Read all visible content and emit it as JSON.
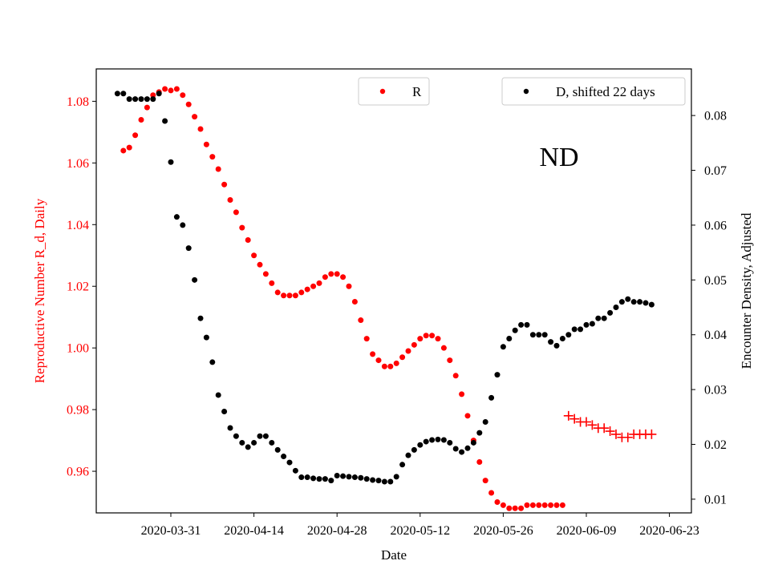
{
  "chart_data": {
    "type": "scatter",
    "annotation": "ND",
    "xlabel": "Date",
    "ylabel_left": "Reproductive Number R_d, Daily",
    "ylabel_right": "Encounter Density, Adjusted",
    "x_ticks": [
      "2020-03-31",
      "2020-04-14",
      "2020-04-28",
      "2020-05-12",
      "2020-05-26",
      "2020-06-09",
      "2020-06-23"
    ],
    "left_ticks": [
      "0.96",
      "0.98",
      "1.00",
      "1.02",
      "1.04",
      "1.06",
      "1.08"
    ],
    "right_ticks": [
      "0.01",
      "0.02",
      "0.03",
      "0.04",
      "0.05",
      "0.06",
      "0.07",
      "0.08"
    ],
    "ylim_left": [
      0.9465,
      1.0905
    ],
    "ylim_right": [
      0.0075,
      0.0885
    ],
    "legend": {
      "r_label": "R",
      "d_label": "D, shifted 22 days"
    },
    "colors": {
      "r": "#ff0000",
      "d": "#000000",
      "left_axis": "#ff0000",
      "right_axis": "#000000"
    },
    "r_series": {
      "name": "R",
      "x": [
        "2020-03-23",
        "2020-03-24",
        "2020-03-25",
        "2020-03-26",
        "2020-03-27",
        "2020-03-28",
        "2020-03-29",
        "2020-03-30",
        "2020-03-31",
        "2020-04-01",
        "2020-04-02",
        "2020-04-03",
        "2020-04-04",
        "2020-04-05",
        "2020-04-06",
        "2020-04-07",
        "2020-04-08",
        "2020-04-09",
        "2020-04-10",
        "2020-04-11",
        "2020-04-12",
        "2020-04-13",
        "2020-04-14",
        "2020-04-15",
        "2020-04-16",
        "2020-04-17",
        "2020-04-18",
        "2020-04-19",
        "2020-04-20",
        "2020-04-21",
        "2020-04-22",
        "2020-04-23",
        "2020-04-24",
        "2020-04-25",
        "2020-04-26",
        "2020-04-27",
        "2020-04-28",
        "2020-04-29",
        "2020-04-30",
        "2020-05-01",
        "2020-05-02",
        "2020-05-03",
        "2020-05-04",
        "2020-05-05",
        "2020-05-06",
        "2020-05-07",
        "2020-05-08",
        "2020-05-09",
        "2020-05-10",
        "2020-05-11",
        "2020-05-12",
        "2020-05-13",
        "2020-05-14",
        "2020-05-15",
        "2020-05-16",
        "2020-05-17",
        "2020-05-18",
        "2020-05-19",
        "2020-05-20",
        "2020-05-21",
        "2020-05-22",
        "2020-05-23",
        "2020-05-24",
        "2020-05-25",
        "2020-05-26",
        "2020-05-27",
        "2020-05-28",
        "2020-05-29",
        "2020-05-30",
        "2020-05-31",
        "2020-06-01",
        "2020-06-02",
        "2020-06-03",
        "2020-06-04",
        "2020-06-05"
      ],
      "y": [
        1.064,
        1.065,
        1.069,
        1.074,
        1.078,
        1.082,
        1.083,
        1.084,
        1.0835,
        1.084,
        1.082,
        1.079,
        1.075,
        1.071,
        1.066,
        1.062,
        1.058,
        1.053,
        1.048,
        1.044,
        1.039,
        1.035,
        1.03,
        1.027,
        1.024,
        1.021,
        1.018,
        1.017,
        1.017,
        1.017,
        1.018,
        1.019,
        1.02,
        1.021,
        1.023,
        1.024,
        1.024,
        1.023,
        1.02,
        1.015,
        1.009,
        1.003,
        0.998,
        0.996,
        0.994,
        0.994,
        0.995,
        0.997,
        0.999,
        1.001,
        1.003,
        1.004,
        1.004,
        1.003,
        1.0,
        0.996,
        0.991,
        0.985,
        0.978,
        0.97,
        0.963,
        0.957,
        0.953,
        0.95,
        0.949,
        0.948,
        0.948,
        0.948,
        0.949,
        0.949,
        0.949,
        0.949,
        0.949,
        0.949,
        0.949
      ]
    },
    "r_projection": {
      "marker": "plus",
      "x": [
        "2020-06-06",
        "2020-06-07",
        "2020-06-08",
        "2020-06-09",
        "2020-06-10",
        "2020-06-11",
        "2020-06-12",
        "2020-06-13",
        "2020-06-14",
        "2020-06-15",
        "2020-06-16",
        "2020-06-17",
        "2020-06-18",
        "2020-06-19",
        "2020-06-20"
      ],
      "y": [
        0.978,
        0.977,
        0.976,
        0.976,
        0.975,
        0.974,
        0.974,
        0.973,
        0.972,
        0.971,
        0.971,
        0.972,
        0.972,
        0.972,
        0.972
      ]
    },
    "d_series": {
      "name": "D, shifted 22 days",
      "x": [
        "2020-03-22",
        "2020-03-23",
        "2020-03-24",
        "2020-03-25",
        "2020-03-26",
        "2020-03-27",
        "2020-03-28",
        "2020-03-29",
        "2020-03-30",
        "2020-03-31",
        "2020-04-01",
        "2020-04-02",
        "2020-04-03",
        "2020-04-04",
        "2020-04-05",
        "2020-04-06",
        "2020-04-07",
        "2020-04-08",
        "2020-04-09",
        "2020-04-10",
        "2020-04-11",
        "2020-04-12",
        "2020-04-13",
        "2020-04-14",
        "2020-04-15",
        "2020-04-16",
        "2020-04-17",
        "2020-04-18",
        "2020-04-19",
        "2020-04-20",
        "2020-04-21",
        "2020-04-22",
        "2020-04-23",
        "2020-04-24",
        "2020-04-25",
        "2020-04-26",
        "2020-04-27",
        "2020-04-28",
        "2020-04-29",
        "2020-04-30",
        "2020-05-01",
        "2020-05-02",
        "2020-05-03",
        "2020-05-04",
        "2020-05-05",
        "2020-05-06",
        "2020-05-07",
        "2020-05-08",
        "2020-05-09",
        "2020-05-10",
        "2020-05-11",
        "2020-05-12",
        "2020-05-13",
        "2020-05-14",
        "2020-05-15",
        "2020-05-16",
        "2020-05-17",
        "2020-05-18",
        "2020-05-19",
        "2020-05-20",
        "2020-05-21",
        "2020-05-22",
        "2020-05-23",
        "2020-05-24",
        "2020-05-25",
        "2020-05-26",
        "2020-05-27",
        "2020-05-28",
        "2020-05-29",
        "2020-05-30",
        "2020-05-31",
        "2020-06-01",
        "2020-06-02",
        "2020-06-03",
        "2020-06-04",
        "2020-06-05",
        "2020-06-06",
        "2020-06-07",
        "2020-06-08",
        "2020-06-09",
        "2020-06-10",
        "2020-06-11",
        "2020-06-12",
        "2020-06-13",
        "2020-06-14",
        "2020-06-15",
        "2020-06-16",
        "2020-06-17",
        "2020-06-18",
        "2020-06-19",
        "2020-06-20"
      ],
      "y": [
        0.084,
        0.084,
        0.083,
        0.083,
        0.083,
        0.083,
        0.083,
        0.084,
        0.079,
        0.0715,
        0.0615,
        0.06,
        0.0558,
        0.05,
        0.043,
        0.0395,
        0.035,
        0.029,
        0.026,
        0.023,
        0.0215,
        0.0203,
        0.0195,
        0.0203,
        0.0215,
        0.0215,
        0.0203,
        0.019,
        0.0178,
        0.0167,
        0.0152,
        0.014,
        0.014,
        0.0138,
        0.0137,
        0.0137,
        0.0134,
        0.0143,
        0.0142,
        0.0141,
        0.014,
        0.0139,
        0.0137,
        0.0135,
        0.0134,
        0.0132,
        0.0132,
        0.0141,
        0.0163,
        0.018,
        0.019,
        0.0199,
        0.0205,
        0.0208,
        0.0209,
        0.0208,
        0.0203,
        0.0192,
        0.0186,
        0.0193,
        0.0203,
        0.0221,
        0.0241,
        0.0285,
        0.0327,
        0.0378,
        0.0393,
        0.0408,
        0.0418,
        0.0418,
        0.04,
        0.04,
        0.04,
        0.0387,
        0.038,
        0.0393,
        0.04,
        0.041,
        0.041,
        0.0418,
        0.042,
        0.043,
        0.043,
        0.044,
        0.045,
        0.046,
        0.0465,
        0.046,
        0.046,
        0.0458,
        0.0455
      ]
    }
  }
}
